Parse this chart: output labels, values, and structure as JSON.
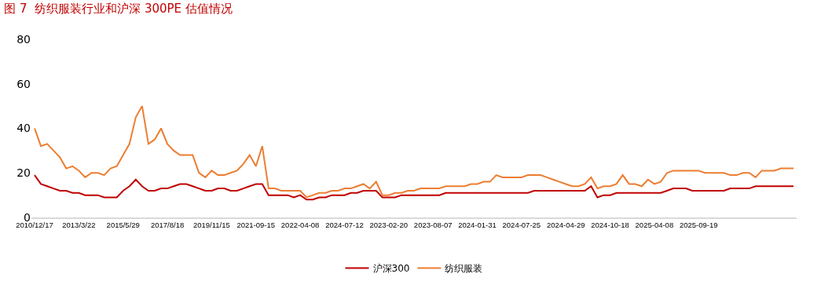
{
  "chart_data": {
    "type": "line",
    "title": "图 7  纺织服装行业和沪深 300PE 估值情况",
    "categories": [
      "2010/12/17",
      null,
      null,
      null,
      null,
      null,
      null,
      "2013/3/22",
      null,
      null,
      null,
      null,
      null,
      null,
      "2015/5/29",
      null,
      null,
      null,
      null,
      null,
      null,
      "2017/8/18",
      null,
      null,
      null,
      null,
      null,
      null,
      "2019/11/15",
      null,
      null,
      null,
      null,
      null,
      null,
      "2021-09-15",
      null,
      null,
      null,
      null,
      null,
      null,
      "2022-04-08",
      null,
      null,
      null,
      null,
      null,
      null,
      "2024-07-12",
      null,
      null,
      null,
      null,
      null,
      null,
      "2023-02-20",
      null,
      null,
      null,
      null,
      null,
      null,
      "2023-08-07",
      null,
      null,
      null,
      null,
      null,
      null,
      "2024-01-31",
      null,
      null,
      null,
      null,
      null,
      null,
      "2024-07-25",
      null,
      null,
      null,
      null,
      null,
      null,
      "2024-04-29",
      null,
      null,
      null,
      null,
      null,
      null,
      "2024-10-18",
      null,
      null,
      null,
      null,
      null,
      null,
      "2025-04-08",
      null,
      null,
      null,
      null,
      null,
      null,
      "2025-09-19",
      null,
      null,
      null,
      null,
      null,
      null,
      null,
      null,
      null,
      null,
      null,
      null,
      null,
      null,
      null
    ],
    "series": [
      {
        "name": "沪深300",
        "color": "#c00000",
        "values": [
          19,
          15,
          14,
          13,
          12,
          12,
          11,
          11,
          10,
          10,
          10,
          9,
          9,
          9,
          12,
          14,
          17,
          14,
          12,
          12,
          13,
          13,
          14,
          15,
          15,
          14,
          13,
          12,
          12,
          13,
          13,
          12,
          12,
          13,
          14,
          15,
          15,
          10,
          10,
          10,
          10,
          9,
          10,
          8,
          8,
          9,
          9,
          10,
          10,
          10,
          11,
          11,
          12,
          12,
          12,
          9,
          9,
          9,
          10,
          10,
          10,
          10,
          10,
          10,
          10,
          11,
          11,
          11,
          11,
          11,
          11,
          11,
          11,
          11,
          11,
          11,
          11,
          11,
          11,
          12,
          12,
          12,
          12,
          12,
          12,
          12,
          12,
          12,
          14,
          9,
          10,
          10,
          11,
          11,
          11,
          11,
          11,
          11,
          11,
          11,
          12,
          13,
          13,
          13,
          12,
          12,
          12,
          12,
          12,
          12,
          13,
          13,
          13,
          13,
          14,
          14,
          14,
          14,
          14,
          14,
          14
        ]
      },
      {
        "name": "纺织服装",
        "color": "#ed7d31",
        "values": [
          40,
          32,
          33,
          30,
          27,
          22,
          23,
          21,
          18,
          20,
          20,
          19,
          22,
          23,
          28,
          33,
          45,
          50,
          33,
          35,
          40,
          33,
          30,
          28,
          28,
          28,
          20,
          18,
          21,
          19,
          19,
          20,
          21,
          24,
          28,
          23,
          32,
          13,
          13,
          12,
          12,
          12,
          12,
          9,
          10,
          11,
          11,
          12,
          12,
          13,
          13,
          14,
          15,
          13,
          16,
          10,
          10,
          11,
          11,
          12,
          12,
          13,
          13,
          13,
          13,
          14,
          14,
          14,
          14,
          15,
          15,
          16,
          16,
          19,
          18,
          18,
          18,
          18,
          19,
          19,
          19,
          18,
          17,
          16,
          15,
          14,
          14,
          15,
          18,
          13,
          14,
          14,
          15,
          19,
          15,
          15,
          14,
          17,
          15,
          16,
          20,
          21,
          21,
          21,
          21,
          21,
          20,
          20,
          20,
          20,
          19,
          19,
          20,
          20,
          18,
          21,
          21,
          21,
          22,
          22,
          22
        ]
      }
    ],
    "ylim": [
      0,
      80
    ],
    "yticks": [
      0,
      20,
      40,
      60,
      80
    ],
    "legend": "bottom",
    "marker": "none",
    "line_style": "solid"
  }
}
